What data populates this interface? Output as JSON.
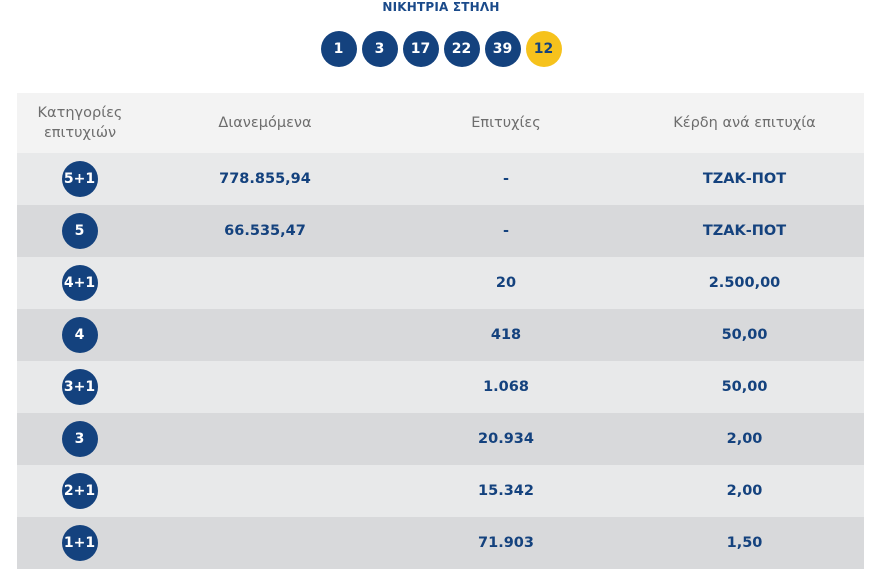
{
  "header": {
    "title": "ΝΙΚΗΤΡΙΑ ΣΤΗΛΗ",
    "numbers": [
      "1",
      "3",
      "17",
      "22",
      "39"
    ],
    "joker": "12"
  },
  "colors": {
    "ball_blue": "#14427e",
    "joker_yellow": "#f6c21c",
    "header_bg": "#f3f3f3",
    "row_light": "#e8e9ea",
    "row_dark": "#d8d9db"
  },
  "table": {
    "headers": {
      "category_line1": "Κατηγορίες",
      "category_line2": "επιτυχιών",
      "distributed": "Διανεμόμενα",
      "winners": "Επιτυχίες",
      "prize": "Κέρδη ανά επιτυχία"
    },
    "rows": [
      {
        "category": "5+1",
        "distributed": "778.855,94",
        "winners": "-",
        "prize": "ΤΖΑΚ-ΠΟΤ"
      },
      {
        "category": "5",
        "distributed": "66.535,47",
        "winners": "-",
        "prize": "ΤΖΑΚ-ΠΟΤ"
      },
      {
        "category": "4+1",
        "distributed": "",
        "winners": "20",
        "prize": "2.500,00"
      },
      {
        "category": "4",
        "distributed": "",
        "winners": "418",
        "prize": "50,00"
      },
      {
        "category": "3+1",
        "distributed": "",
        "winners": "1.068",
        "prize": "50,00"
      },
      {
        "category": "3",
        "distributed": "",
        "winners": "20.934",
        "prize": "2,00"
      },
      {
        "category": "2+1",
        "distributed": "",
        "winners": "15.342",
        "prize": "2,00"
      },
      {
        "category": "1+1",
        "distributed": "",
        "winners": "71.903",
        "prize": "1,50"
      }
    ]
  }
}
